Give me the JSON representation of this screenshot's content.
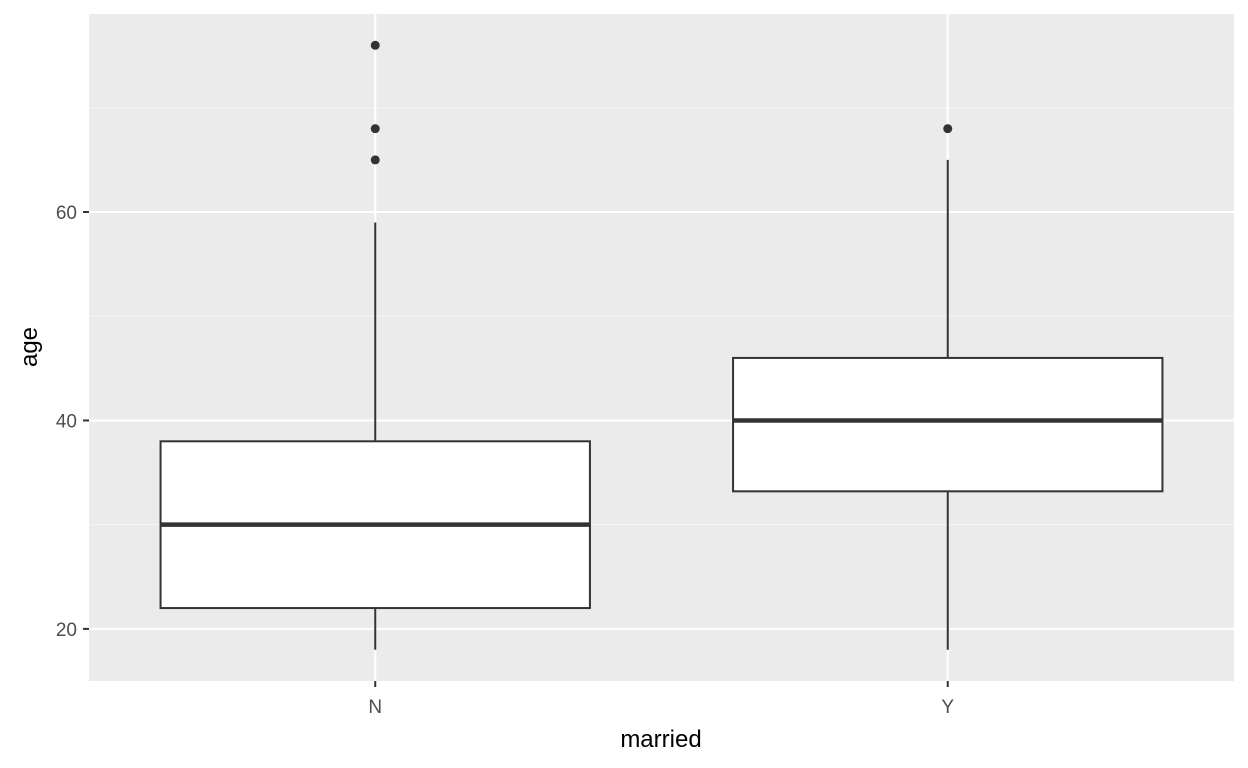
{
  "chart_data": {
    "type": "boxplot",
    "xlabel": "married",
    "ylabel": "age",
    "categories": [
      "N",
      "Y"
    ],
    "ylim": [
      15,
      79
    ],
    "y_major_ticks": [
      20,
      40,
      60
    ],
    "y_minor_ticks": [
      30,
      50,
      70
    ],
    "grid": true,
    "boxes": [
      {
        "category": "N",
        "whisker_low": 18,
        "q1": 22,
        "median": 30,
        "q3": 38,
        "whisker_high": 59,
        "outliers": [
          65,
          68,
          76
        ]
      },
      {
        "category": "Y",
        "whisker_low": 18,
        "q1": 33.2,
        "median": 40,
        "q3": 46,
        "whisker_high": 65,
        "outliers": [
          68
        ]
      }
    ],
    "colors": {
      "panel_background": "#ebebeb",
      "grid_major": "#ffffff",
      "grid_minor": "#f5f5f5",
      "box_fill": "#ffffff",
      "box_line": "#333333",
      "tick_text": "#4d4d4d",
      "title_text": "#000000"
    }
  }
}
